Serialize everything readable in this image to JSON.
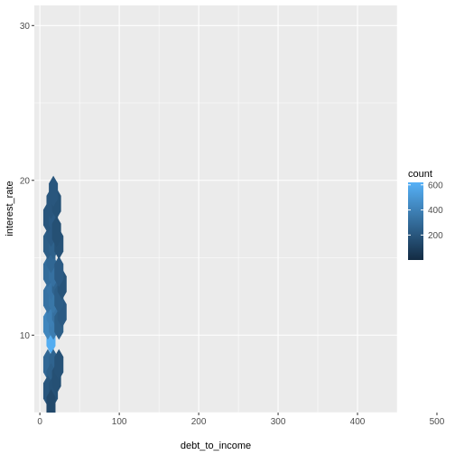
{
  "chart_data": {
    "type": "hexbin",
    "xlabel": "debt_to_income",
    "ylabel": "interest_rate",
    "xlim": [
      -7,
      450
    ],
    "ylim": [
      5,
      31.3
    ],
    "x_ticks": [
      0,
      100,
      200,
      300,
      400,
      500
    ],
    "y_ticks": [
      10,
      20,
      30
    ],
    "grid": true,
    "panel_background": "#ebebeb",
    "grid_color": "#ffffff",
    "legend": {
      "title": "count",
      "position": "right",
      "ticks": [
        200,
        400,
        600
      ],
      "min": 1,
      "max": 620,
      "color_low": "#132b43",
      "color_high": "#56b1f7"
    },
    "hexbin_cell": {
      "dx": 7.3,
      "dy": 0.87
    },
    "bins": [
      {
        "x": 14,
        "y": 9.8,
        "count": 600
      },
      {
        "x": 10,
        "y": 10.7,
        "count": 420
      },
      {
        "x": 17,
        "y": 10.7,
        "count": 380
      },
      {
        "x": 14,
        "y": 11.5,
        "count": 390
      },
      {
        "x": 21,
        "y": 11.5,
        "count": 320
      },
      {
        "x": 10,
        "y": 12.4,
        "count": 330
      },
      {
        "x": 17,
        "y": 12.4,
        "count": 350
      },
      {
        "x": 14,
        "y": 13.3,
        "count": 340
      },
      {
        "x": 21,
        "y": 13.3,
        "count": 260
      },
      {
        "x": 10,
        "y": 14.1,
        "count": 300
      },
      {
        "x": 17,
        "y": 14.1,
        "count": 320
      },
      {
        "x": 14,
        "y": 15.0,
        "count": 280
      },
      {
        "x": 10,
        "y": 15.9,
        "count": 230
      },
      {
        "x": 17,
        "y": 15.9,
        "count": 250
      },
      {
        "x": 14,
        "y": 16.7,
        "count": 220
      },
      {
        "x": 10,
        "y": 17.6,
        "count": 200
      },
      {
        "x": 17,
        "y": 17.6,
        "count": 220
      },
      {
        "x": 14,
        "y": 18.5,
        "count": 200
      },
      {
        "x": 21,
        "y": 18.5,
        "count": 180
      },
      {
        "x": 17,
        "y": 19.3,
        "count": 200
      },
      {
        "x": 24,
        "y": 10.7,
        "count": 240
      },
      {
        "x": 28,
        "y": 11.5,
        "count": 220
      },
      {
        "x": 24,
        "y": 12.4,
        "count": 230
      },
      {
        "x": 28,
        "y": 13.3,
        "count": 190
      },
      {
        "x": 24,
        "y": 14.1,
        "count": 220
      },
      {
        "x": 24,
        "y": 15.9,
        "count": 180
      },
      {
        "x": 21,
        "y": 16.7,
        "count": 170
      },
      {
        "x": 10,
        "y": 8.1,
        "count": 280
      },
      {
        "x": 17,
        "y": 8.1,
        "count": 260
      },
      {
        "x": 14,
        "y": 7.2,
        "count": 240
      },
      {
        "x": 10,
        "y": 6.4,
        "count": 200
      },
      {
        "x": 17,
        "y": 6.4,
        "count": 180
      },
      {
        "x": 21,
        "y": 7.2,
        "count": 170
      },
      {
        "x": 14,
        "y": 5.5,
        "count": 140
      },
      {
        "x": 24,
        "y": 8.1,
        "count": 180
      }
    ]
  }
}
